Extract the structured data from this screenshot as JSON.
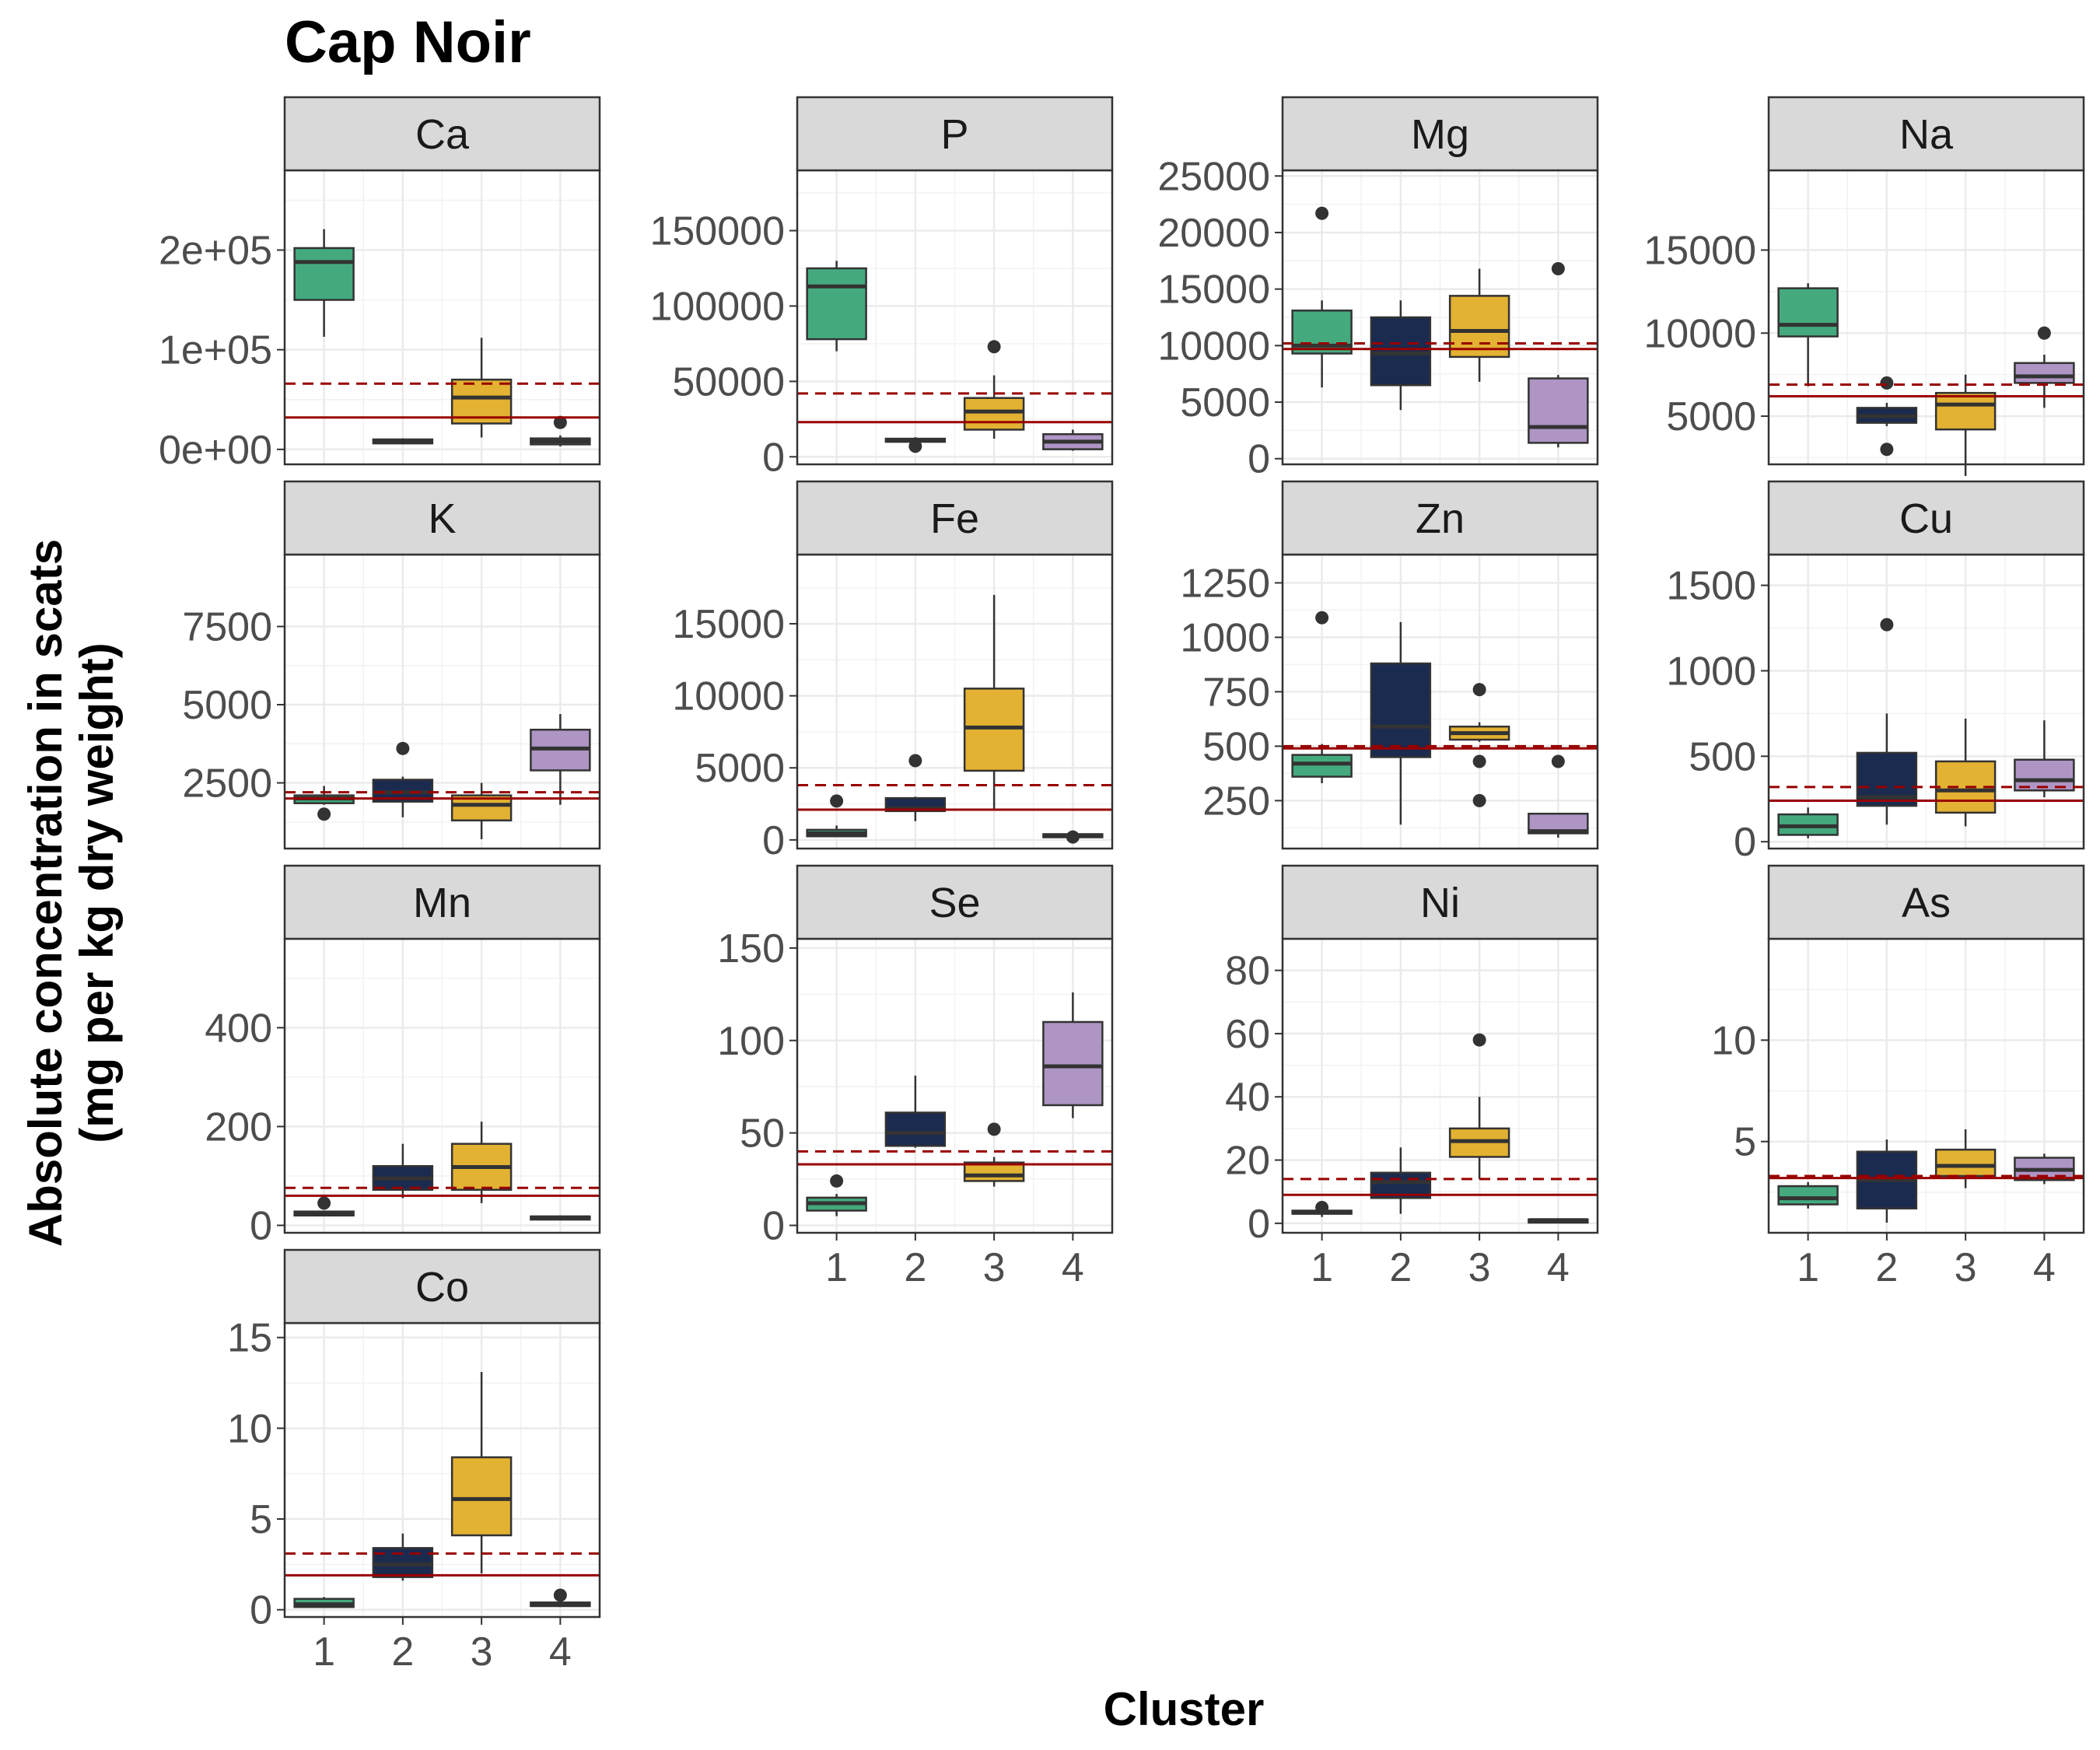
{
  "chart_data": {
    "type": "box",
    "title": "Cap Noir",
    "xlabel": "Cluster",
    "ylabel_line1": "Absolute concentration in scats",
    "ylabel_line2": "(mg per kg dry weight)",
    "categories": [
      "1",
      "2",
      "3",
      "4"
    ],
    "cluster_colors": {
      "1": "#44AA7E",
      "2": "#1B2A4F",
      "3": "#E3B232",
      "4": "#AE95C4"
    },
    "reference_line_color": "#990000",
    "reference_lines": {
      "solid": "solid dark red line",
      "dashed": "dashed dark red line"
    },
    "grid": true,
    "legend": "none",
    "panels": [
      {
        "name": "Ca",
        "ylim": [
          -15000,
          280000
        ],
        "ticks": [
          0,
          100000,
          200000
        ],
        "tick_labels": [
          "0e+00",
          "1e+05",
          "2e+05"
        ],
        "solid_line": 32000,
        "dashed_line": 66000,
        "boxes": [
          {
            "cluster": "1",
            "min": 113000,
            "q1": 150000,
            "median": 188000,
            "q3": 202000,
            "max": 221000,
            "outliers": []
          },
          {
            "cluster": "2",
            "min": 5000,
            "q1": 6000,
            "median": 8000,
            "q3": 10000,
            "max": 11000,
            "outliers": []
          },
          {
            "cluster": "3",
            "min": 12000,
            "q1": 26000,
            "median": 52000,
            "q3": 70000,
            "max": 112000,
            "outliers": []
          },
          {
            "cluster": "4",
            "min": 3000,
            "q1": 5000,
            "median": 8000,
            "q3": 11000,
            "max": 14000,
            "outliers": [
              27000
            ]
          }
        ]
      },
      {
        "name": "P",
        "ylim": [
          -5000,
          190000
        ],
        "ticks": [
          0,
          50000,
          100000,
          150000
        ],
        "tick_labels": [
          "0",
          "50000",
          "100000",
          "150000"
        ],
        "solid_line": 23000,
        "dashed_line": 42000,
        "boxes": [
          {
            "cluster": "1",
            "min": 70000,
            "q1": 78000,
            "median": 113000,
            "q3": 125000,
            "max": 130000,
            "outliers": []
          },
          {
            "cluster": "2",
            "min": 9000,
            "q1": 10000,
            "median": 11000,
            "q3": 12000,
            "max": 13000,
            "outliers": [
              7000
            ]
          },
          {
            "cluster": "3",
            "min": 12000,
            "q1": 18000,
            "median": 30000,
            "q3": 39000,
            "max": 54000,
            "outliers": [
              73000
            ]
          },
          {
            "cluster": "4",
            "min": 4000,
            "q1": 5000,
            "median": 10000,
            "q3": 15000,
            "max": 18000,
            "outliers": []
          }
        ]
      },
      {
        "name": "Mg",
        "ylim": [
          -500,
          25500
        ],
        "ticks": [
          0,
          5000,
          10000,
          15000,
          20000,
          25000
        ],
        "tick_labels": [
          "0",
          "5000",
          "10000",
          "15000",
          "20000",
          "25000"
        ],
        "solid_line": 9700,
        "dashed_line": 10200,
        "boxes": [
          {
            "cluster": "1",
            "min": 6300,
            "q1": 9300,
            "median": 10000,
            "q3": 13100,
            "max": 14000,
            "outliers": [
              21700
            ]
          },
          {
            "cluster": "2",
            "min": 4300,
            "q1": 6500,
            "median": 9300,
            "q3": 12500,
            "max": 14000,
            "outliers": []
          },
          {
            "cluster": "3",
            "min": 6800,
            "q1": 9000,
            "median": 11300,
            "q3": 14400,
            "max": 16800,
            "outliers": []
          },
          {
            "cluster": "4",
            "min": 1000,
            "q1": 1400,
            "median": 2800,
            "q3": 7100,
            "max": 7400,
            "outliers": [
              16800
            ]
          }
        ]
      },
      {
        "name": "Na",
        "ylim": [
          2100,
          19800
        ],
        "ticks": [
          5000,
          10000,
          15000
        ],
        "tick_labels": [
          "5000",
          "10000",
          "15000"
        ],
        "solid_line": 6200,
        "dashed_line": 6900,
        "boxes": [
          {
            "cluster": "1",
            "min": 6800,
            "q1": 9800,
            "median": 10500,
            "q3": 12700,
            "max": 13000,
            "outliers": []
          },
          {
            "cluster": "2",
            "min": 4400,
            "q1": 4600,
            "median": 5000,
            "q3": 5500,
            "max": 5800,
            "outliers": [
              7000,
              3000
            ]
          },
          {
            "cluster": "3",
            "min": 1400,
            "q1": 4200,
            "median": 5700,
            "q3": 6400,
            "max": 7500,
            "outliers": []
          },
          {
            "cluster": "4",
            "min": 5500,
            "q1": 7000,
            "median": 7400,
            "q3": 8200,
            "max": 8700,
            "outliers": [
              10000
            ]
          }
        ]
      },
      {
        "name": "K",
        "ylim": [
          400,
          9800
        ],
        "ticks": [
          2500,
          5000,
          7500
        ],
        "tick_labels": [
          "2500",
          "5000",
          "7500"
        ],
        "solid_line": 2000,
        "dashed_line": 2200,
        "boxes": [
          {
            "cluster": "1",
            "min": 1800,
            "q1": 1850,
            "median": 2000,
            "q3": 2100,
            "max": 2400,
            "outliers": [
              1500
            ]
          },
          {
            "cluster": "2",
            "min": 1400,
            "q1": 1900,
            "median": 2200,
            "q3": 2600,
            "max": 2700,
            "outliers": [
              3600
            ]
          },
          {
            "cluster": "3",
            "min": 700,
            "q1": 1300,
            "median": 1800,
            "q3": 2100,
            "max": 2500,
            "outliers": []
          },
          {
            "cluster": "4",
            "min": 1800,
            "q1": 2900,
            "median": 3600,
            "q3": 4200,
            "max": 4700,
            "outliers": []
          }
        ]
      },
      {
        "name": "Fe",
        "ylim": [
          -600,
          19800
        ],
        "ticks": [
          0,
          5000,
          10000,
          15000
        ],
        "tick_labels": [
          "0",
          "5000",
          "10000",
          "15000"
        ],
        "solid_line": 2100,
        "dashed_line": 3800,
        "boxes": [
          {
            "cluster": "1",
            "min": 200,
            "q1": 250,
            "median": 450,
            "q3": 700,
            "max": 1000,
            "outliers": [
              2700
            ]
          },
          {
            "cluster": "2",
            "min": 1300,
            "q1": 2000,
            "median": 2200,
            "q3": 2900,
            "max": 3000,
            "outliers": [
              5500
            ]
          },
          {
            "cluster": "3",
            "min": 2100,
            "q1": 4800,
            "median": 7800,
            "q3": 10500,
            "max": 17000,
            "outliers": []
          },
          {
            "cluster": "4",
            "min": 150,
            "q1": 200,
            "median": 300,
            "q3": 400,
            "max": 500,
            "outliers": [
              200
            ]
          }
        ]
      },
      {
        "name": "Zn",
        "ylim": [
          30,
          1380
        ],
        "ticks": [
          250,
          500,
          750,
          1000,
          1250
        ],
        "tick_labels": [
          "250",
          "500",
          "750",
          "1000",
          "1250"
        ],
        "solid_line": 490,
        "dashed_line": 500,
        "boxes": [
          {
            "cluster": "1",
            "min": 330,
            "q1": 360,
            "median": 420,
            "q3": 460,
            "max": 510,
            "outliers": [
              1090
            ]
          },
          {
            "cluster": "2",
            "min": 140,
            "q1": 450,
            "median": 590,
            "q3": 880,
            "max": 1070,
            "outliers": []
          },
          {
            "cluster": "3",
            "min": 520,
            "q1": 530,
            "median": 560,
            "q3": 590,
            "max": 610,
            "outliers": [
              760,
              430,
              250
            ]
          },
          {
            "cluster": "4",
            "min": 80,
            "q1": 100,
            "median": 110,
            "q3": 190,
            "max": 190,
            "outliers": [
              430
            ]
          }
        ]
      },
      {
        "name": "Cu",
        "ylim": [
          -40,
          1680
        ],
        "ticks": [
          0,
          500,
          1000,
          1500
        ],
        "tick_labels": [
          "0",
          "500",
          "1000",
          "1500"
        ],
        "solid_line": 240,
        "dashed_line": 320,
        "boxes": [
          {
            "cluster": "1",
            "min": 20,
            "q1": 40,
            "median": 90,
            "q3": 160,
            "max": 200,
            "outliers": []
          },
          {
            "cluster": "2",
            "min": 100,
            "q1": 210,
            "median": 260,
            "q3": 520,
            "max": 750,
            "outliers": [
              1270
            ]
          },
          {
            "cluster": "3",
            "min": 90,
            "q1": 170,
            "median": 300,
            "q3": 470,
            "max": 720,
            "outliers": []
          },
          {
            "cluster": "4",
            "min": 260,
            "q1": 300,
            "median": 360,
            "q3": 480,
            "max": 710,
            "outliers": []
          }
        ]
      },
      {
        "name": "Mn",
        "ylim": [
          -15,
          580
        ],
        "ticks": [
          0,
          200,
          400
        ],
        "tick_labels": [
          "0",
          "200",
          "400"
        ],
        "solid_line": 60,
        "dashed_line": 76,
        "boxes": [
          {
            "cluster": "1",
            "min": 18,
            "q1": 20,
            "median": 23,
            "q3": 28,
            "max": 30,
            "outliers": [
              45
            ]
          },
          {
            "cluster": "2",
            "min": 55,
            "q1": 72,
            "median": 95,
            "q3": 120,
            "max": 165,
            "outliers": []
          },
          {
            "cluster": "3",
            "min": 45,
            "q1": 72,
            "median": 118,
            "q3": 165,
            "max": 210,
            "outliers": []
          },
          {
            "cluster": "4",
            "min": 12,
            "q1": 14,
            "median": 16,
            "q3": 18,
            "max": 20,
            "outliers": []
          }
        ]
      },
      {
        "name": "Se",
        "ylim": [
          -4,
          155
        ],
        "ticks": [
          0,
          50,
          100,
          150
        ],
        "tick_labels": [
          "0",
          "50",
          "100",
          "150"
        ],
        "solid_line": 33,
        "dashed_line": 40,
        "boxes": [
          {
            "cluster": "1",
            "min": 5,
            "q1": 8,
            "median": 12,
            "q3": 15,
            "max": 17,
            "outliers": [
              24
            ]
          },
          {
            "cluster": "2",
            "min": 42,
            "q1": 43,
            "median": 50,
            "q3": 61,
            "max": 81,
            "outliers": []
          },
          {
            "cluster": "3",
            "min": 21,
            "q1": 24,
            "median": 27,
            "q3": 34,
            "max": 37,
            "outliers": [
              52
            ]
          },
          {
            "cluster": "4",
            "min": 58,
            "q1": 65,
            "median": 86,
            "q3": 110,
            "max": 126,
            "outliers": []
          }
        ]
      },
      {
        "name": "Ni",
        "ylim": [
          -3,
          90
        ],
        "ticks": [
          0,
          20,
          40,
          60,
          80
        ],
        "tick_labels": [
          "0",
          "20",
          "40",
          "60",
          "80"
        ],
        "solid_line": 9,
        "dashed_line": 14,
        "boxes": [
          {
            "cluster": "1",
            "min": 2,
            "q1": 3,
            "median": 3.5,
            "q3": 4,
            "max": 4.5,
            "outliers": [
              5
            ]
          },
          {
            "cluster": "2",
            "min": 3,
            "q1": 8,
            "median": 13,
            "q3": 16,
            "max": 24,
            "outliers": []
          },
          {
            "cluster": "3",
            "min": 14,
            "q1": 21,
            "median": 26,
            "q3": 30,
            "max": 40,
            "outliers": [
              58
            ]
          },
          {
            "cluster": "4",
            "min": 0.5,
            "q1": 0.7,
            "median": 1,
            "q3": 1.2,
            "max": 1.5,
            "outliers": []
          }
        ]
      },
      {
        "name": "As",
        "ylim": [
          0.5,
          15
        ],
        "ticks": [
          5,
          10
        ],
        "tick_labels": [
          "5",
          "10"
        ],
        "solid_line": 3.2,
        "dashed_line": 3.3,
        "boxes": [
          {
            "cluster": "1",
            "min": 1.7,
            "q1": 1.9,
            "median": 2.2,
            "q3": 2.8,
            "max": 3.0,
            "outliers": []
          },
          {
            "cluster": "2",
            "min": 1.0,
            "q1": 1.7,
            "median": 3.1,
            "q3": 4.5,
            "max": 5.1,
            "outliers": []
          },
          {
            "cluster": "3",
            "min": 2.7,
            "q1": 3.3,
            "median": 3.8,
            "q3": 4.6,
            "max": 5.6,
            "outliers": []
          },
          {
            "cluster": "4",
            "min": 2.9,
            "q1": 3.1,
            "median": 3.6,
            "q3": 4.2,
            "max": 4.4,
            "outliers": []
          }
        ]
      },
      {
        "name": "Co",
        "ylim": [
          -0.4,
          15.8
        ],
        "ticks": [
          0,
          5,
          10,
          15
        ],
        "tick_labels": [
          "0",
          "5",
          "10",
          "15"
        ],
        "solid_line": 1.9,
        "dashed_line": 3.1,
        "boxes": [
          {
            "cluster": "1",
            "min": 0.1,
            "q1": 0.15,
            "median": 0.3,
            "q3": 0.6,
            "max": 0.7,
            "outliers": []
          },
          {
            "cluster": "2",
            "min": 1.6,
            "q1": 1.8,
            "median": 2.5,
            "q3": 3.4,
            "max": 4.2,
            "outliers": []
          },
          {
            "cluster": "3",
            "min": 2,
            "q1": 4.1,
            "median": 6.1,
            "q3": 8.4,
            "max": 13.1,
            "outliers": []
          },
          {
            "cluster": "4",
            "min": 0.15,
            "q1": 0.2,
            "median": 0.3,
            "q3": 0.4,
            "max": 0.5,
            "outliers": [
              0.8
            ]
          }
        ]
      }
    ]
  }
}
